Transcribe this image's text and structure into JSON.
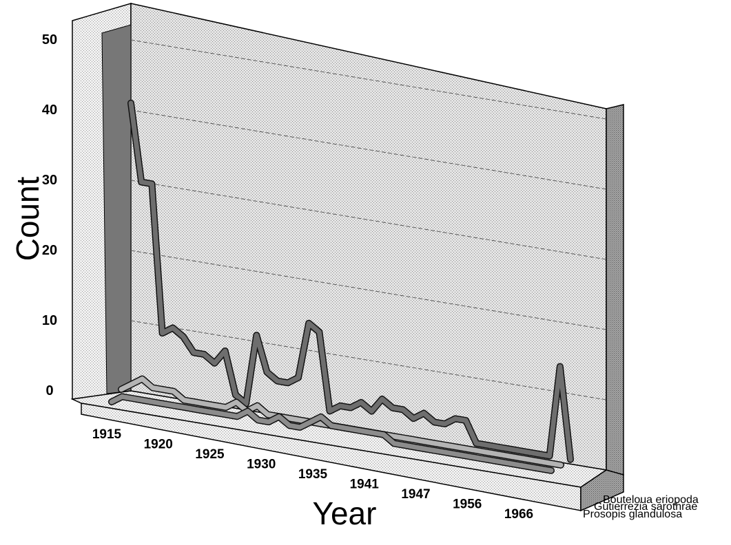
{
  "chart_data": {
    "type": "line",
    "style": "3d-ribbon",
    "xlabel": "Year",
    "ylabel": "Count",
    "ylim": [
      0,
      50
    ],
    "yticks": [
      "0",
      "10",
      "20",
      "30",
      "40",
      "50"
    ],
    "grid": true,
    "x_tick_labels": [
      "1915",
      "1920",
      "1925",
      "1930",
      "1935",
      "1941",
      "1947",
      "1956",
      "1966"
    ],
    "series": [
      {
        "name": "Bouteloua eriopoda",
        "color": "#6e6e6e",
        "values": [
          41,
          30,
          30,
          9,
          10,
          9,
          7,
          7,
          6,
          8,
          2,
          1,
          11,
          6,
          5,
          5,
          6,
          14,
          13,
          2,
          3,
          3,
          4,
          3,
          5,
          4,
          4,
          3,
          4,
          3,
          3,
          4,
          4,
          1,
          1,
          1,
          1,
          1,
          1,
          1,
          1,
          14,
          1
        ]
      },
      {
        "name": "Gutierrezia sarothrae",
        "color": "#b4b4b4",
        "values": [
          1,
          2,
          3,
          2,
          2,
          2,
          1,
          1,
          1,
          1,
          1,
          2,
          1,
          2,
          1,
          1,
          1,
          1,
          1,
          1,
          1,
          1,
          1,
          1,
          1,
          1,
          1,
          1,
          1,
          1,
          1,
          1,
          1,
          1,
          1,
          1,
          1,
          1,
          1,
          1,
          1,
          1,
          1
        ]
      },
      {
        "name": "Prosopis glandulosa",
        "color": "#8c8c8c",
        "values": [
          0,
          1,
          1,
          1,
          1,
          1,
          1,
          1,
          1,
          1,
          1,
          1,
          1,
          2,
          1,
          1,
          2,
          1,
          1,
          2,
          3,
          2,
          2,
          2,
          2,
          2,
          2,
          1,
          1,
          1,
          1,
          1,
          1,
          1,
          1,
          1,
          1,
          1,
          1,
          1,
          1,
          1,
          1
        ]
      }
    ]
  }
}
